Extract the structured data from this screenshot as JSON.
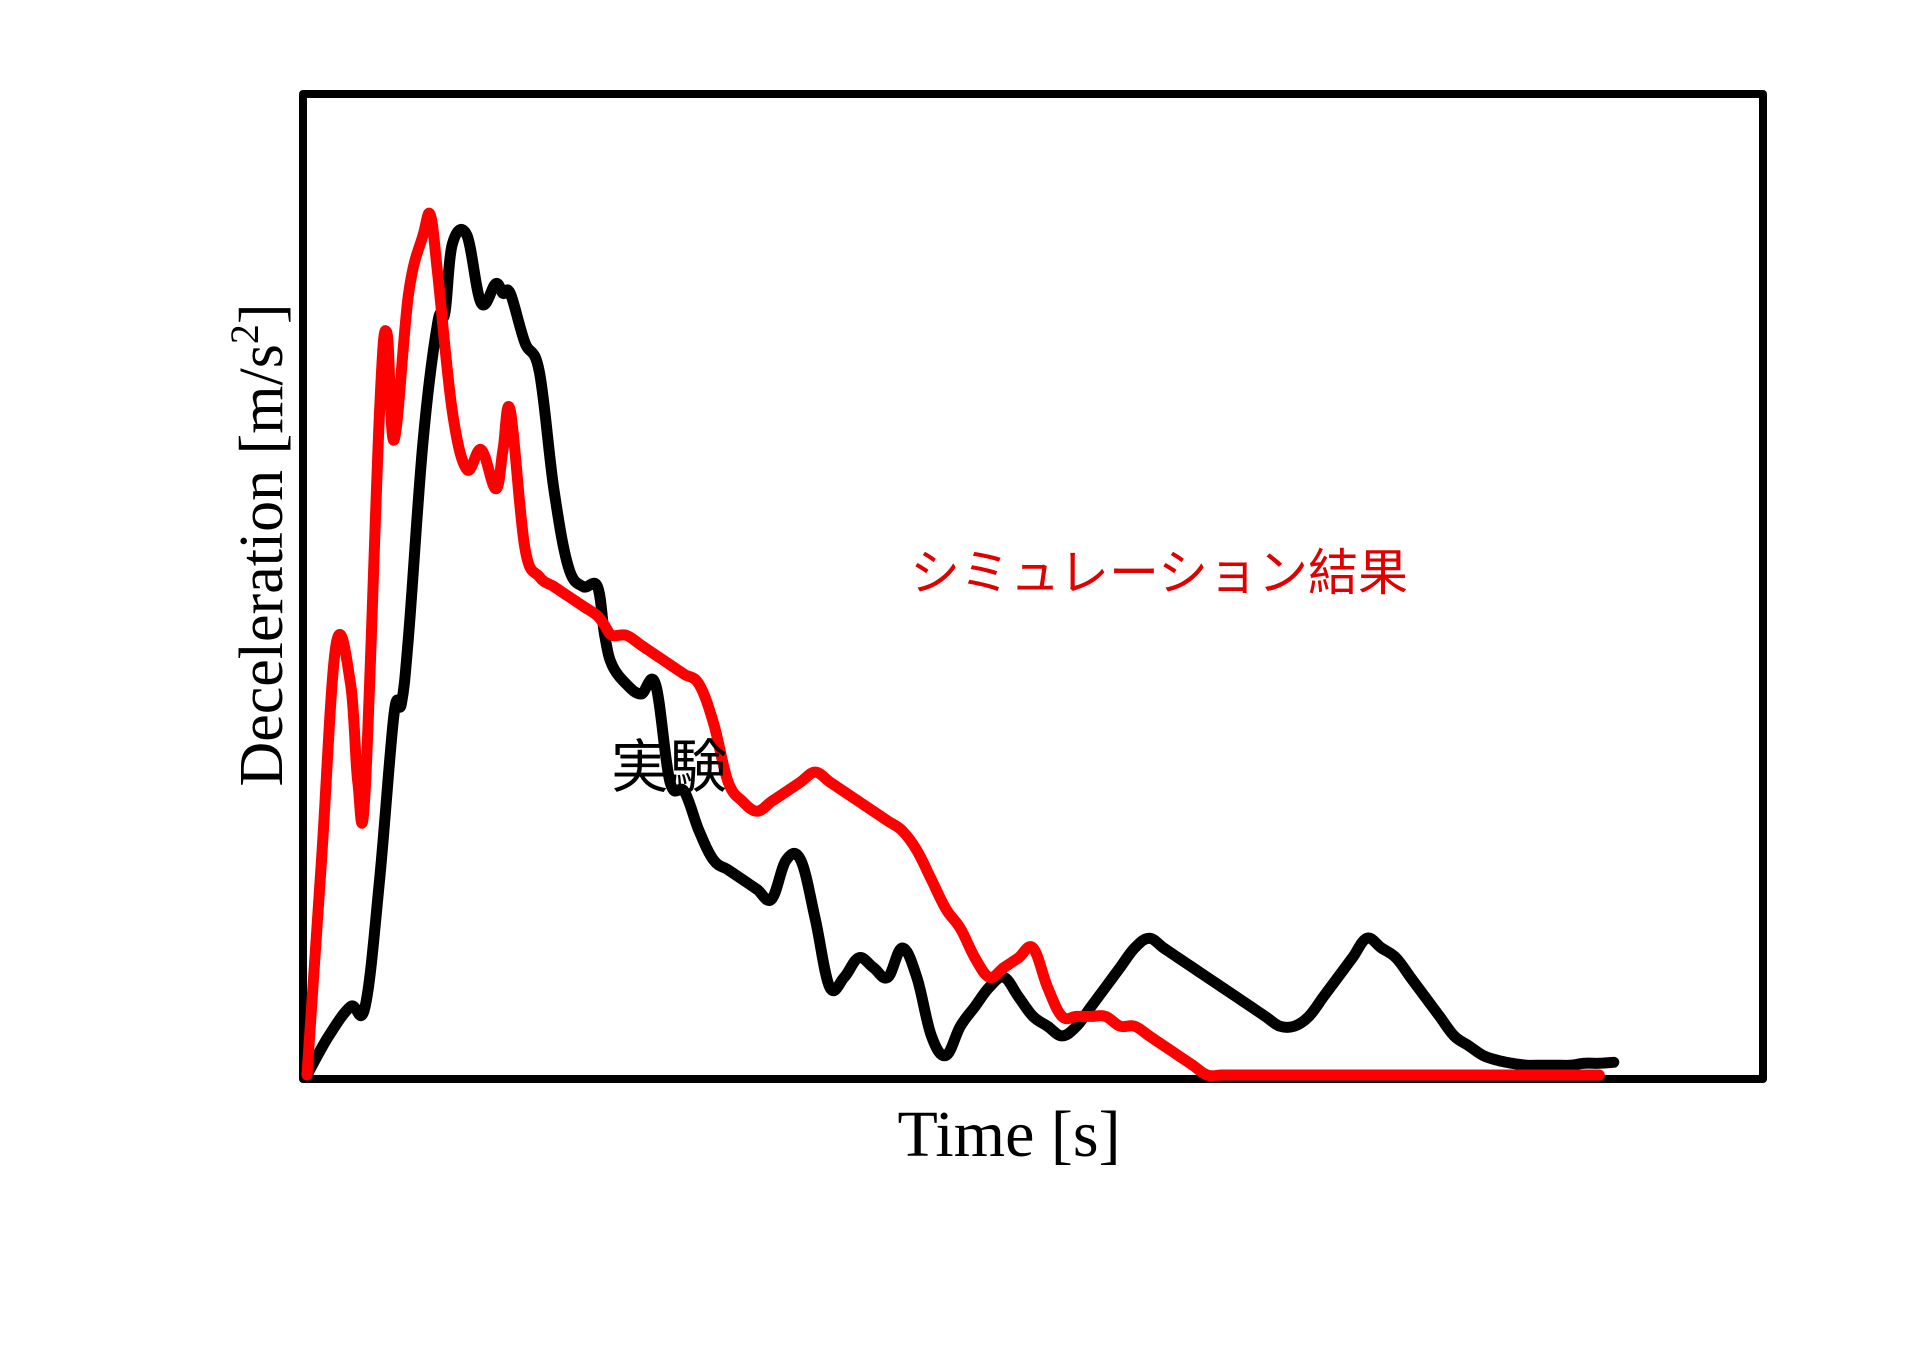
{
  "chart_data": {
    "type": "line",
    "title": "",
    "xlabel": "Time [s]",
    "ylabel": "Deceleration [m/s",
    "ylabel_superscript": "2",
    "ylabel_suffix": "]",
    "xlim": [
      0,
      100
    ],
    "ylim": [
      0,
      100
    ],
    "x_ticks_shown": false,
    "y_ticks_shown": false,
    "grid": false,
    "legend": "none",
    "series": [
      {
        "color": "#000000",
        "x": [
          0,
          1.5,
          3,
          4,
          5,
          6,
          6.5,
          7,
          8,
          9,
          9.5,
          10,
          11,
          12,
          13,
          13.5,
          14,
          15,
          16,
          17,
          18,
          19,
          20,
          20.5,
          21,
          22,
          23,
          24,
          25,
          26,
          27,
          28,
          29,
          30,
          31,
          32,
          33,
          34,
          35,
          36,
          37,
          38,
          39,
          40,
          41,
          42,
          43,
          44,
          45,
          46,
          47,
          48,
          49,
          50,
          51,
          52,
          53,
          54,
          55,
          56,
          57,
          58,
          59,
          60,
          61,
          62,
          63,
          64,
          65,
          66,
          67,
          68,
          69,
          70,
          71,
          72,
          73,
          74,
          75,
          76,
          77,
          78,
          79,
          80,
          81,
          82,
          83,
          84,
          85,
          86,
          87,
          88,
          89,
          90
        ],
        "y": [
          0,
          4,
          7,
          7,
          20,
          37,
          38,
          45,
          65,
          77,
          78,
          85,
          86,
          79,
          81,
          80,
          80,
          75,
          72,
          60,
          52,
          50,
          50,
          45,
          42,
          40,
          39,
          40,
          30,
          29,
          25,
          22,
          21,
          20,
          19,
          18,
          22,
          22,
          16,
          9,
          10,
          12,
          11,
          10,
          13,
          10,
          4,
          2,
          5,
          7,
          9,
          10,
          8,
          6,
          5,
          4,
          5,
          7,
          9,
          11,
          13,
          14,
          13,
          12,
          11,
          10,
          9,
          8,
          7,
          6,
          5,
          5,
          6,
          8,
          10,
          12,
          14,
          13,
          12,
          10,
          8,
          6,
          4,
          3,
          2,
          1.5,
          1.2,
          1,
          1,
          1,
          1,
          1.2,
          1.2,
          1.3
        ]
      },
      {
        "color": "#ff0000",
        "x": [
          0,
          1,
          2,
          3,
          3.5,
          4,
          5,
          5.5,
          6,
          7,
          8,
          8.5,
          9,
          10,
          11,
          12,
          13,
          13.5,
          14,
          15,
          16,
          17,
          18,
          19,
          20,
          20.5,
          21,
          22,
          23,
          24,
          25,
          26,
          27,
          28,
          29,
          30,
          31,
          32,
          33,
          34,
          35,
          36,
          37,
          38,
          39,
          40,
          41,
          42,
          43,
          44,
          45,
          46,
          47,
          48,
          49,
          50,
          51,
          52,
          53,
          54,
          55,
          56,
          57,
          58,
          59,
          60,
          61,
          62,
          63,
          64,
          65,
          66,
          67,
          68,
          69,
          70,
          71,
          72,
          73,
          74,
          75,
          76,
          77,
          78,
          79,
          80,
          81,
          82,
          83,
          84,
          85,
          86,
          87,
          88,
          89
        ],
        "y": [
          0,
          22,
          44,
          40,
          30,
          29,
          68,
          76,
          65,
          80,
          86,
          88,
          82,
          68,
          62,
          64,
          60,
          64,
          68,
          54,
          51,
          50,
          49,
          48,
          47,
          46,
          45,
          45,
          44,
          43,
          42,
          41,
          40,
          36,
          30,
          28,
          27,
          28,
          29,
          30,
          31,
          30,
          29,
          28,
          27,
          26,
          25,
          23,
          20,
          17,
          15,
          12,
          10,
          11,
          12,
          13,
          9,
          6,
          6,
          6,
          6,
          5,
          5,
          4,
          3,
          2,
          1,
          0,
          0,
          0,
          0,
          0,
          0,
          0,
          0,
          0,
          0,
          0,
          0,
          0,
          0,
          0,
          0,
          0,
          0,
          0,
          0,
          0,
          0,
          0,
          0,
          0,
          0,
          0,
          0
        ]
      }
    ]
  },
  "annotations": {
    "experiment_label": "実験",
    "simulation_label": "シミュレーション結果",
    "experiment_color": "#000000",
    "simulation_color": "#e00000"
  }
}
